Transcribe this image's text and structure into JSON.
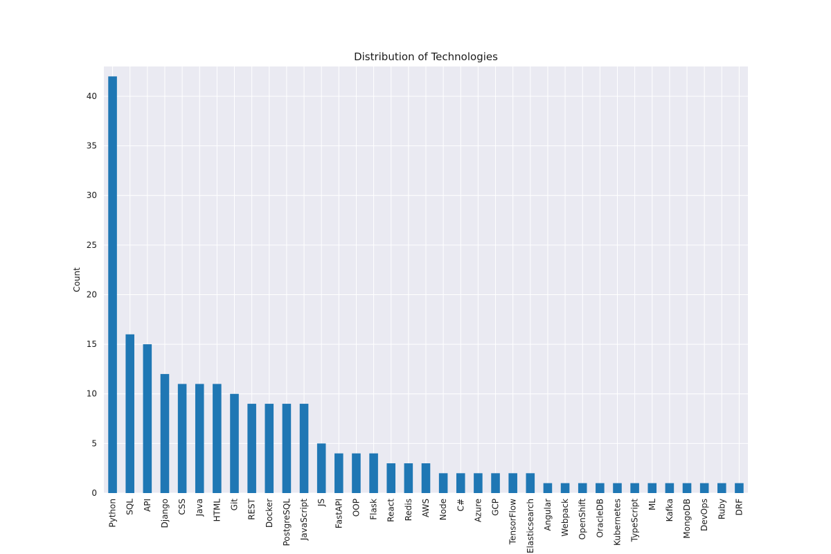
{
  "chart_data": {
    "type": "bar",
    "title": "Distribution of Technologies",
    "xlabel": "",
    "ylabel": "Count",
    "ylim": [
      0,
      43
    ],
    "yticks": [
      0,
      5,
      10,
      15,
      20,
      25,
      30,
      35,
      40
    ],
    "grid": true,
    "categories": [
      "Python",
      "SQL",
      "API",
      "Django",
      "CSS",
      "Java",
      "HTML",
      "Git",
      "REST",
      "Docker",
      "PostgreSQL",
      "JavaScript",
      "JS",
      "FastAPI",
      "OOP",
      "Flask",
      "React",
      "Redis",
      "AWS",
      "Node",
      "C#",
      "Azure",
      "GCP",
      "TensorFlow",
      "Elasticsearch",
      "Angular",
      "Webpack",
      "OpenShift",
      "OracleDB",
      "Kubernetes",
      "TypeScript",
      "ML",
      "Kafka",
      "MongoDB",
      "DevOps",
      "Ruby",
      "DRF"
    ],
    "values": [
      42,
      16,
      15,
      12,
      11,
      11,
      11,
      10,
      9,
      9,
      9,
      9,
      5,
      4,
      4,
      4,
      3,
      3,
      3,
      2,
      2,
      2,
      2,
      2,
      2,
      1,
      1,
      1,
      1,
      1,
      1,
      1,
      1,
      1,
      1,
      1,
      1
    ],
    "colors": {
      "bar": "#1f77b4",
      "plot_bg": "#eaeaf2",
      "grid": "#ffffff"
    }
  }
}
